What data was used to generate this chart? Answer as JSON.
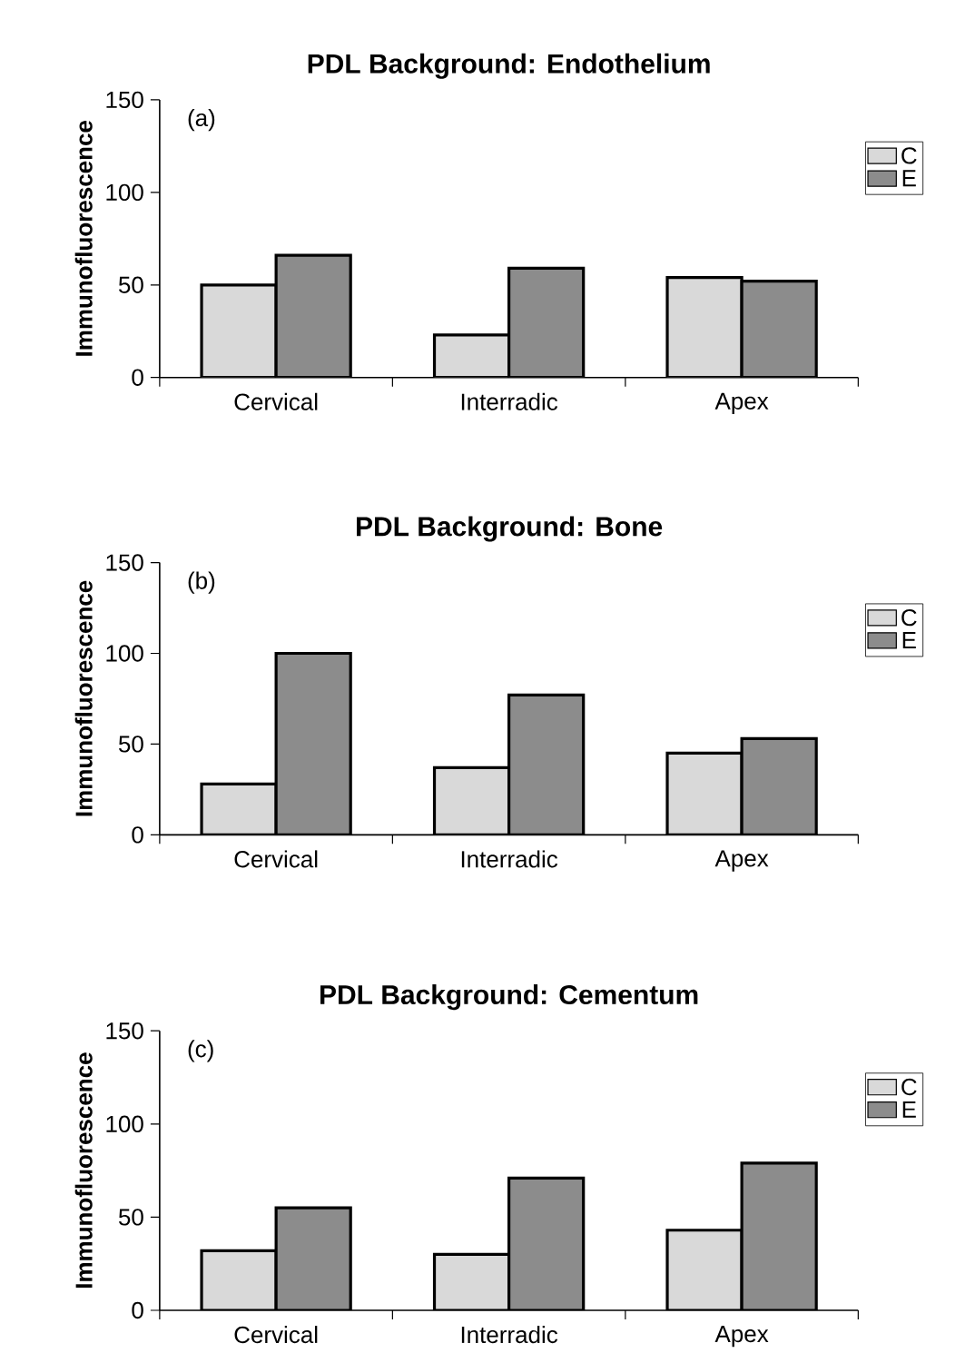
{
  "chart_data": [
    {
      "type": "bar",
      "title": "PDL Background: Endothelium",
      "ylabel": "Immunofluorescence",
      "annotations": [
        "(a)"
      ],
      "categories": [
        "Cervical",
        "Interradic",
        "Apex"
      ],
      "series": [
        {
          "name": "C",
          "color": "#d9d9d9",
          "values": [
            50,
            23,
            54
          ]
        },
        {
          "name": "E",
          "color": "#8c8c8c",
          "values": [
            66,
            59,
            52
          ]
        }
      ],
      "ylim": [
        0,
        150
      ],
      "yticks": [
        0,
        50,
        100,
        150
      ],
      "legend": "right",
      "grid": false
    },
    {
      "type": "bar",
      "title": "PDL Background: Bone",
      "ylabel": "Immunofluorescence",
      "annotations": [
        "(b)"
      ],
      "categories": [
        "Cervical",
        "Interradic",
        "Apex"
      ],
      "series": [
        {
          "name": "C",
          "color": "#d9d9d9",
          "values": [
            28,
            37,
            45
          ]
        },
        {
          "name": "E",
          "color": "#8c8c8c",
          "values": [
            100,
            77,
            53
          ]
        }
      ],
      "ylim": [
        0,
        150
      ],
      "yticks": [
        0,
        50,
        100,
        150
      ],
      "legend": "right",
      "grid": false
    },
    {
      "type": "bar",
      "title": "PDL Background: Cementum",
      "ylabel": "Immunofluorescence",
      "annotations": [
        "(c)"
      ],
      "categories": [
        "Cervical",
        "Interradic",
        "Apex"
      ],
      "series": [
        {
          "name": "C",
          "color": "#d9d9d9",
          "values": [
            32,
            30,
            43
          ]
        },
        {
          "name": "E",
          "color": "#8c8c8c",
          "values": [
            55,
            71,
            79
          ]
        }
      ],
      "ylim": [
        0,
        150
      ],
      "yticks": [
        0,
        50,
        100,
        150
      ],
      "legend": "right",
      "grid": false
    }
  ]
}
